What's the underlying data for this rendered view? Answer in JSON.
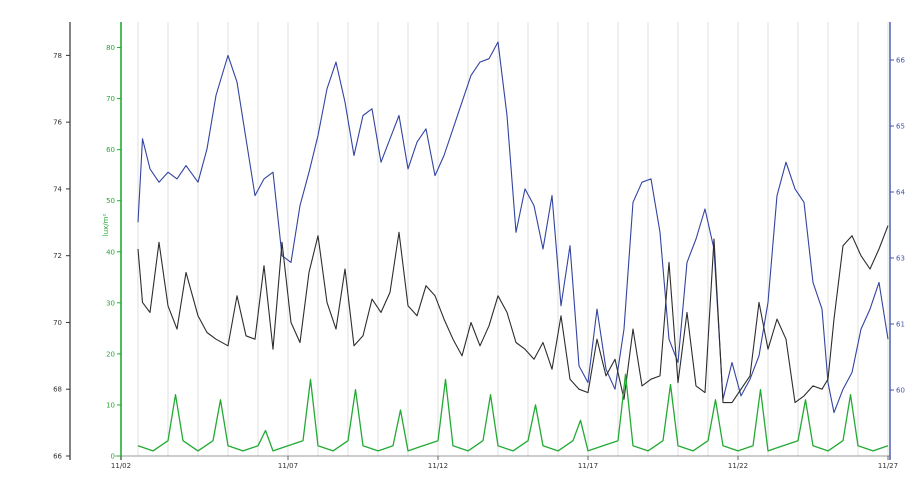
{
  "chart_data": {
    "type": "line",
    "title": "",
    "xlabel": "",
    "x_ticks": [
      "11/02",
      "11/07",
      "11/12",
      "11/17",
      "11/22",
      "11/27"
    ],
    "x_range": [
      0,
      25
    ],
    "axes": {
      "left_outer": {
        "ticks": [
          "66",
          "68",
          "70",
          "72",
          "74",
          "76",
          "78"
        ],
        "range": [
          66,
          79
        ],
        "color": "#333333"
      },
      "left_inner": {
        "label": "lux/m²",
        "ticks": [
          "0",
          "10",
          "20",
          "30",
          "40",
          "50",
          "60",
          "70",
          "80"
        ],
        "range": [
          0,
          85
        ],
        "color": "#22aa33"
      },
      "right": {
        "ticks": [
          "60",
          "61",
          "63",
          "64",
          "65",
          "66"
        ],
        "color": "#4455aa"
      }
    },
    "grid": "vertical",
    "series": [
      {
        "color": "#3344a0",
        "axis": "left_outer",
        "x": [
          0.0,
          0.15,
          0.4,
          0.7,
          1.0,
          1.3,
          1.6,
          2.0,
          2.3,
          2.6,
          3.0,
          3.3,
          3.6,
          3.9,
          4.2,
          4.5,
          4.8,
          5.1,
          5.4,
          5.7,
          6.0,
          6.3,
          6.6,
          6.9,
          7.2,
          7.5,
          7.8,
          8.1,
          8.4,
          8.7,
          9.0,
          9.3,
          9.6,
          9.9,
          10.2,
          10.5,
          10.8,
          11.1,
          11.4,
          11.7,
          12.0,
          12.3,
          12.6,
          12.9,
          13.2,
          13.5,
          13.8,
          14.1,
          14.4,
          14.7,
          15.0,
          15.3,
          15.6,
          15.9,
          16.2,
          16.5,
          16.8,
          17.1,
          17.4,
          17.7,
          18.0,
          18.3,
          18.6,
          18.9,
          19.2,
          19.5,
          19.8,
          20.1,
          20.4,
          20.7,
          21.0,
          21.3,
          21.6,
          21.9,
          22.2,
          22.5,
          22.8,
          23.0,
          23.2,
          23.5,
          23.8,
          24.1,
          24.4,
          24.7,
          25.0
        ],
        "y": [
          73.0,
          75.5,
          74.6,
          74.2,
          74.5,
          74.3,
          74.7,
          74.2,
          75.2,
          76.8,
          78.0,
          77.2,
          75.5,
          73.8,
          74.3,
          74.5,
          72.0,
          71.8,
          73.5,
          74.5,
          75.6,
          77.0,
          77.8,
          76.6,
          75.0,
          76.2,
          76.4,
          74.8,
          75.5,
          76.2,
          74.6,
          75.4,
          75.8,
          74.4,
          75.0,
          75.8,
          76.6,
          77.4,
          77.8,
          77.9,
          78.4,
          76.2,
          72.7,
          74.0,
          73.5,
          72.2,
          73.8,
          70.5,
          72.3,
          68.7,
          68.2,
          70.4,
          68.6,
          68.0,
          69.8,
          73.6,
          74.2,
          74.3,
          72.7,
          69.5,
          68.8,
          71.8,
          72.5,
          73.4,
          72.2,
          67.7,
          68.8,
          67.8,
          68.3,
          69.0,
          70.6,
          73.8,
          74.8,
          74.0,
          73.6,
          71.2,
          70.4,
          68.2,
          67.3,
          68.0,
          68.5,
          69.8,
          70.4,
          71.2,
          69.5
        ]
      },
      {
        "color": "#2d2d2d",
        "axis": "left_outer",
        "x": [
          0.0,
          0.15,
          0.4,
          0.7,
          1.0,
          1.3,
          1.6,
          2.0,
          2.3,
          2.6,
          3.0,
          3.3,
          3.6,
          3.9,
          4.2,
          4.5,
          4.8,
          5.1,
          5.4,
          5.7,
          6.0,
          6.3,
          6.6,
          6.9,
          7.2,
          7.5,
          7.8,
          8.1,
          8.4,
          8.7,
          9.0,
          9.3,
          9.6,
          9.9,
          10.2,
          10.5,
          10.8,
          11.1,
          11.4,
          11.7,
          12.0,
          12.3,
          12.6,
          12.9,
          13.2,
          13.5,
          13.8,
          14.1,
          14.4,
          14.7,
          15.0,
          15.3,
          15.6,
          15.9,
          16.2,
          16.5,
          16.8,
          17.1,
          17.4,
          17.7,
          18.0,
          18.3,
          18.6,
          18.9,
          19.2,
          19.5,
          19.8,
          20.1,
          20.4,
          20.7,
          21.0,
          21.3,
          21.6,
          21.9,
          22.2,
          22.5,
          22.8,
          23.0,
          23.2,
          23.5,
          23.8,
          24.1,
          24.4,
          24.7,
          25.0
        ],
        "y": [
          72.2,
          70.6,
          70.3,
          72.4,
          70.5,
          69.8,
          71.5,
          70.2,
          69.7,
          69.5,
          69.3,
          70.8,
          69.6,
          69.5,
          71.7,
          69.2,
          72.4,
          70.0,
          69.4,
          71.5,
          72.6,
          70.6,
          69.8,
          71.6,
          69.3,
          69.6,
          70.7,
          70.3,
          70.9,
          72.7,
          70.5,
          70.2,
          71.1,
          70.8,
          70.1,
          69.5,
          69.0,
          70.0,
          69.3,
          69.9,
          70.8,
          70.3,
          69.4,
          69.2,
          68.9,
          69.4,
          68.6,
          70.2,
          68.3,
          68.0,
          67.9,
          69.5,
          68.4,
          68.9,
          67.7,
          69.8,
          68.1,
          68.3,
          68.4,
          71.8,
          68.2,
          70.3,
          68.1,
          67.9,
          72.5,
          67.6,
          67.6,
          68.0,
          68.4,
          70.6,
          69.2,
          70.1,
          69.5,
          67.6,
          67.8,
          68.1,
          68.0,
          68.3,
          70.1,
          72.3,
          72.6,
          72.0,
          71.6,
          72.2,
          72.9
        ]
      },
      {
        "color": "#22aa33",
        "axis": "left_inner",
        "x": [
          0.0,
          0.5,
          1.0,
          1.25,
          1.5,
          2.0,
          2.5,
          2.75,
          3.0,
          3.5,
          4.0,
          4.25,
          4.5,
          5.0,
          5.5,
          5.75,
          6.0,
          6.5,
          7.0,
          7.25,
          7.5,
          8.0,
          8.5,
          8.75,
          9.0,
          9.5,
          10.0,
          10.25,
          10.5,
          11.0,
          11.5,
          11.75,
          12.0,
          12.5,
          13.0,
          13.25,
          13.5,
          14.0,
          14.5,
          14.75,
          15.0,
          15.5,
          16.0,
          16.25,
          16.5,
          17.0,
          17.5,
          17.75,
          18.0,
          18.5,
          19.0,
          19.25,
          19.5,
          20.0,
          20.5,
          20.75,
          21.0,
          21.5,
          22.0,
          22.25,
          22.5,
          23.0,
          23.5,
          23.75,
          24.0,
          24.5,
          25.0
        ],
        "y": [
          2,
          1,
          3,
          12,
          3,
          1,
          3,
          11,
          2,
          1,
          2,
          5,
          1,
          2,
          3,
          15,
          2,
          1,
          3,
          13,
          2,
          1,
          2,
          9,
          1,
          2,
          3,
          15,
          2,
          1,
          3,
          12,
          2,
          1,
          3,
          10,
          2,
          1,
          3,
          7,
          1,
          2,
          3,
          16,
          2,
          1,
          3,
          14,
          2,
          1,
          3,
          11,
          2,
          1,
          2,
          13,
          1,
          2,
          3,
          11,
          2,
          1,
          3,
          12,
          2,
          1,
          2
        ]
      }
    ]
  }
}
